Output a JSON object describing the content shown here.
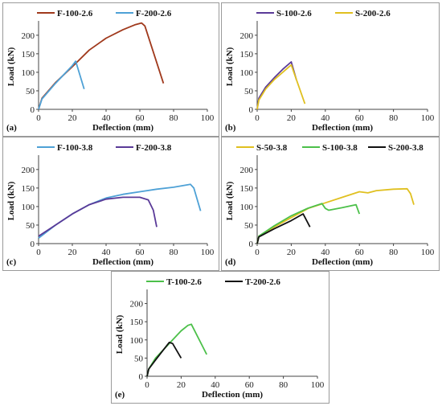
{
  "chart_data": [
    {
      "type": "line",
      "panel_label": "(a)",
      "xlabel": "Deflection (mm)",
      "ylabel": "Load (kN)",
      "xlim": [
        0,
        100
      ],
      "ylim": [
        0,
        230
      ],
      "xticks": [
        0,
        20,
        40,
        60,
        80,
        100
      ],
      "yticks": [
        0,
        50,
        100,
        150,
        200
      ],
      "legend_position": "top",
      "series": [
        {
          "name": "F-100-2.6",
          "color": "#a0391c",
          "x": [
            0,
            2,
            10,
            20,
            30,
            40,
            50,
            57,
            61,
            63,
            74
          ],
          "y": [
            0,
            30,
            72,
            115,
            160,
            192,
            215,
            228,
            233,
            225,
            70
          ]
        },
        {
          "name": "F-200-2.6",
          "color": "#4ea1d6",
          "x": [
            0,
            2,
            10,
            20,
            22,
            27
          ],
          "y": [
            0,
            28,
            70,
            118,
            130,
            55
          ]
        }
      ]
    },
    {
      "type": "line",
      "panel_label": "(b)",
      "xlabel": "Deflection (mm)",
      "ylabel": "Load (kN)",
      "xlim": [
        0,
        100
      ],
      "ylim": [
        0,
        230
      ],
      "xticks": [
        0,
        20,
        40,
        60,
        80,
        100
      ],
      "yticks": [
        0,
        50,
        100,
        150,
        200
      ],
      "legend_position": "top",
      "series": [
        {
          "name": "S-100-2.6",
          "color": "#5a3a98",
          "x": [
            0,
            1,
            5,
            10,
            15,
            20,
            23
          ],
          "y": [
            0,
            30,
            60,
            85,
            108,
            128,
            80
          ]
        },
        {
          "name": "S-200-2.6",
          "color": "#e0c020",
          "x": [
            0,
            1,
            5,
            10,
            15,
            20,
            28
          ],
          "y": [
            0,
            25,
            55,
            80,
            100,
            120,
            15
          ]
        }
      ]
    },
    {
      "type": "line",
      "panel_label": "(c)",
      "xlabel": "Deflection (mm)",
      "ylabel": "Load (kN)",
      "xlim": [
        0,
        100
      ],
      "ylim": [
        0,
        230
      ],
      "xticks": [
        0,
        20,
        40,
        60,
        80,
        100
      ],
      "yticks": [
        0,
        50,
        100,
        150,
        200
      ],
      "legend_position": "top",
      "series": [
        {
          "name": "F-100-3.8",
          "color": "#4ea1d6",
          "x": [
            0,
            10,
            20,
            30,
            40,
            50,
            60,
            70,
            80,
            90,
            92,
            96
          ],
          "y": [
            15,
            50,
            80,
            105,
            123,
            133,
            140,
            147,
            152,
            160,
            150,
            88
          ]
        },
        {
          "name": "F-200-3.8",
          "color": "#5a3a98",
          "x": [
            0,
            10,
            20,
            30,
            40,
            50,
            60,
            65,
            68,
            70
          ],
          "y": [
            20,
            50,
            80,
            105,
            120,
            125,
            125,
            118,
            90,
            45
          ]
        }
      ]
    },
    {
      "type": "line",
      "panel_label": "(d)",
      "xlabel": "Deflection (mm)",
      "ylabel": "Load (kN)",
      "xlim": [
        0,
        100
      ],
      "ylim": [
        0,
        230
      ],
      "xticks": [
        0,
        20,
        40,
        60,
        80,
        100
      ],
      "yticks": [
        0,
        50,
        100,
        150,
        200
      ],
      "legend_position": "top",
      "series": [
        {
          "name": "S-50-3.8",
          "color": "#e0c020",
          "x": [
            0,
            1,
            10,
            20,
            30,
            40,
            50,
            60,
            65,
            70,
            80,
            88,
            90,
            92
          ],
          "y": [
            0,
            20,
            45,
            70,
            95,
            110,
            125,
            140,
            137,
            143,
            147,
            148,
            135,
            105
          ]
        },
        {
          "name": "S-100-3.8",
          "color": "#4cc04a",
          "x": [
            0,
            1,
            10,
            20,
            30,
            38,
            40,
            42,
            50,
            58,
            60
          ],
          "y": [
            0,
            20,
            48,
            75,
            96,
            108,
            95,
            90,
            97,
            105,
            80
          ]
        },
        {
          "name": "S-200-3.8",
          "color": "#111111",
          "x": [
            0,
            1,
            10,
            20,
            25,
            27,
            31
          ],
          "y": [
            0,
            18,
            40,
            62,
            75,
            80,
            45
          ]
        }
      ]
    },
    {
      "type": "line",
      "panel_label": "(e)",
      "xlabel": "Deflection (mm)",
      "ylabel": "Load (kN)",
      "xlim": [
        0,
        100
      ],
      "ylim": [
        0,
        230
      ],
      "xticks": [
        0,
        20,
        40,
        60,
        80,
        100
      ],
      "yticks": [
        0,
        50,
        100,
        150,
        200
      ],
      "legend_position": "top",
      "series": [
        {
          "name": "T-100-2.6",
          "color": "#4cc04a",
          "x": [
            0,
            1,
            5,
            10,
            15,
            20,
            24,
            26,
            35
          ],
          "y": [
            0,
            20,
            50,
            75,
            100,
            125,
            140,
            143,
            60
          ]
        },
        {
          "name": "T-200-2.6",
          "color": "#111111",
          "x": [
            0,
            1,
            5,
            10,
            13,
            15,
            20
          ],
          "y": [
            0,
            20,
            45,
            75,
            93,
            90,
            50
          ]
        }
      ]
    }
  ]
}
